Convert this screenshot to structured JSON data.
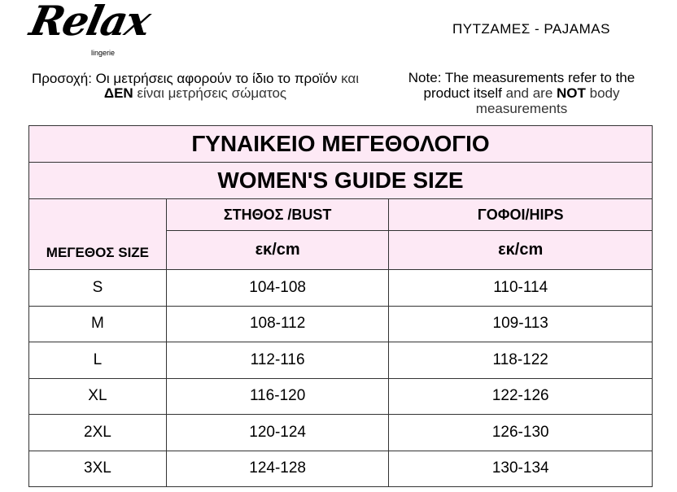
{
  "brand": {
    "logo_text": "Relax",
    "logo_subtext": "lingerie"
  },
  "product_category": "ΠΥΤΖΑΜΕΣ - PAJAMAS",
  "note_greek": {
    "part1": "Προσοχή: Οι μετρήσεις αφορούν το ίδιο το προϊόν",
    "part2": " και ",
    "part3": "ΔΕΝ",
    "part4": " είναι μετρήσεις σώματος"
  },
  "note_english": {
    "part1": "Note: The measurements refer to the product itself",
    "part2": " and are ",
    "part3": "NOT",
    "part4": " body measurements"
  },
  "table": {
    "title_greek": "ΓΥΝΑΙΚΕΙΟ ΜΕΓΕΘΟΛΟΓΙΟ",
    "title_english": "WOMEN'S GUIDE SIZE",
    "size_header": "ΜΕΓΕΘΟΣ SIZE",
    "columns": [
      {
        "label": "ΣΤΗΘΟΣ /BUST",
        "unit": "εκ/cm"
      },
      {
        "label": "ΓΟΦΟΙ/HIPS",
        "unit": "εκ/cm"
      }
    ],
    "rows": [
      {
        "size": "S",
        "bust": "104-108",
        "hips": "110-114"
      },
      {
        "size": "M",
        "bust": "108-112",
        "hips": "109-113"
      },
      {
        "size": "L",
        "bust": "112-116",
        "hips": "118-122"
      },
      {
        "size": "XL",
        "bust": "116-120",
        "hips": "122-126"
      },
      {
        "size": "2XL",
        "bust": "120-124",
        "hips": "126-130"
      },
      {
        "size": "3XL",
        "bust": "124-128",
        "hips": "130-134"
      }
    ]
  },
  "colors": {
    "header_bg": "#fde9f5",
    "border": "#333333"
  }
}
